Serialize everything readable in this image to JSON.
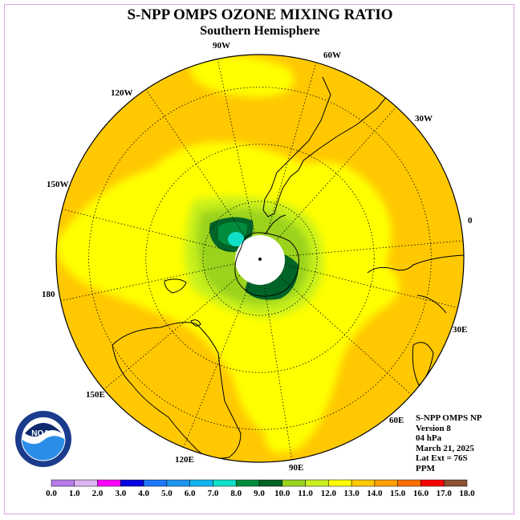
{
  "title": "S-NPP OMPS OZONE MIXING RATIO",
  "subtitle": "Southern Hemisphere",
  "info": {
    "instrument": "S-NPP OMPS NP",
    "version": "Version 8",
    "level": "04 hPa",
    "date": "March 21, 2025",
    "lat_ext": "Lat Ext = 76S",
    "units": "PPM"
  },
  "logo": {
    "text": "NOAA",
    "icon": "noaa-logo-icon"
  },
  "longitude_labels": [
    "0",
    "30E",
    "60E",
    "90E",
    "120E",
    "150E",
    "180",
    "150W",
    "120W",
    "90W",
    "60W",
    "30W"
  ],
  "colorbar": {
    "ticks": [
      "0.0",
      "1.0",
      "2.0",
      "3.0",
      "4.0",
      "5.0",
      "6.0",
      "7.0",
      "8.0",
      "9.0",
      "10.0",
      "11.0",
      "12.0",
      "13.0",
      "14.0",
      "15.0",
      "16.0",
      "17.0",
      "18.0"
    ],
    "colors": [
      "#b57ce8",
      "#dcb4f0",
      "#ff00ff",
      "#0000e0",
      "#1e78ff",
      "#1e96f0",
      "#14b4f0",
      "#10e0c8",
      "#008c3c",
      "#006428",
      "#9ad21e",
      "#c8f01e",
      "#ffff00",
      "#ffc800",
      "#ffa000",
      "#ff6e00",
      "#ff0000",
      "#8c5030"
    ]
  },
  "field_colors": {
    "orange": "#ffc800",
    "yellow": "#ffff00",
    "light_yellow_green": "#c8f01e",
    "yellow_green": "#9ad21e",
    "dark_green": "#006428",
    "green": "#008c3c",
    "cyan": "#10e0c8",
    "missing": "#ffffff"
  }
}
